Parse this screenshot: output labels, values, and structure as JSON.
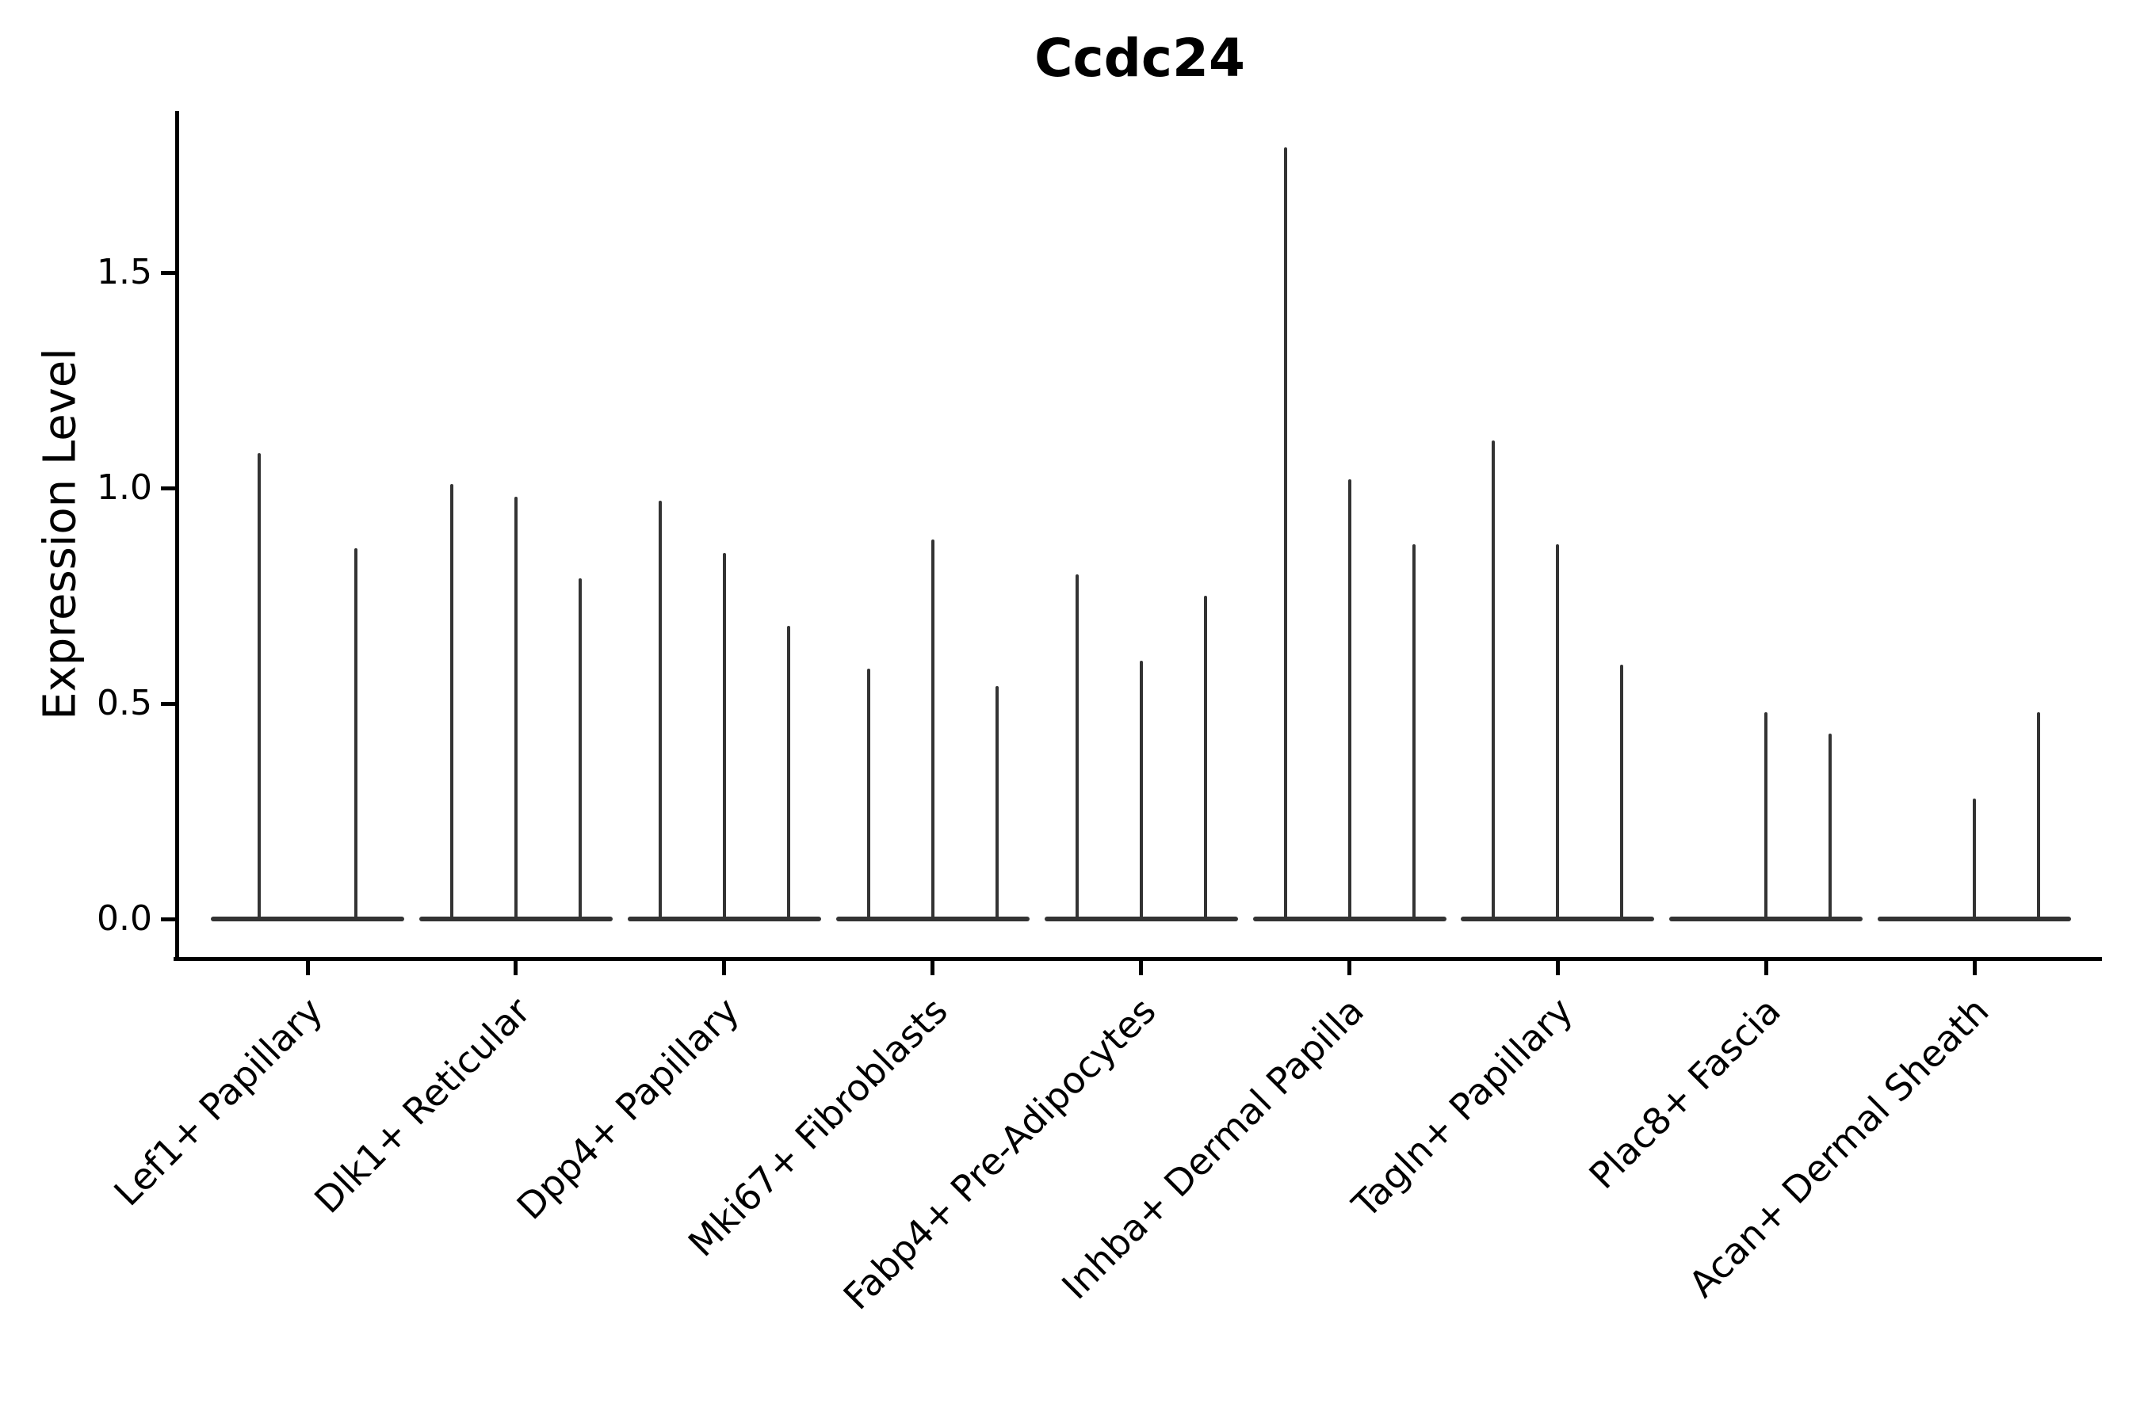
{
  "chart_data": {
    "type": "violin",
    "title": "Ccdc24",
    "ylabel": "Expression Level",
    "xlabel": "",
    "ytick_labels": [
      "0.0",
      "0.5",
      "1.0",
      "1.5"
    ],
    "ytick_values": [
      0.0,
      0.5,
      1.0,
      1.5
    ],
    "ylim": [
      -0.09,
      1.875
    ],
    "grid": false,
    "legend": "none",
    "description": "Violin plot of gene expression; each cell-type group contains narrow collapsed violins (spikes) rising from a flat body at 0. Spike values are the maximum expression per violin.",
    "groups": [
      {
        "label": "Lef1+ Papillary",
        "violin_max": [
          1.08,
          0.86
        ]
      },
      {
        "label": "Dlk1+ Reticular",
        "violin_max": [
          1.01,
          0.98,
          0.79
        ]
      },
      {
        "label": "Dpp4+ Papillary",
        "violin_max": [
          0.97,
          0.85,
          0.68
        ]
      },
      {
        "label": "Mki67+ Fibroblasts",
        "violin_max": [
          0.58,
          0.88,
          0.54
        ]
      },
      {
        "label": "Fabp4+ Pre-Adipocytes",
        "violin_max": [
          0.8,
          0.6,
          0.75
        ]
      },
      {
        "label": "Inhba+ Dermal Papilla",
        "violin_max": [
          1.79,
          1.02,
          0.87
        ]
      },
      {
        "label": "Tagln+ Papillary",
        "violin_max": [
          1.11,
          0.87,
          0.59
        ]
      },
      {
        "label": "Plac8+ Fascia",
        "violin_max": [
          0.0,
          0.48,
          0.43
        ]
      },
      {
        "label": "Acan+ Dermal Sheath",
        "violin_max": [
          0.0,
          0.28,
          0.48
        ]
      }
    ],
    "colors": {
      "violin_line": "#333333",
      "axis": "#000000",
      "text": "#000000",
      "background": "#ffffff"
    }
  }
}
